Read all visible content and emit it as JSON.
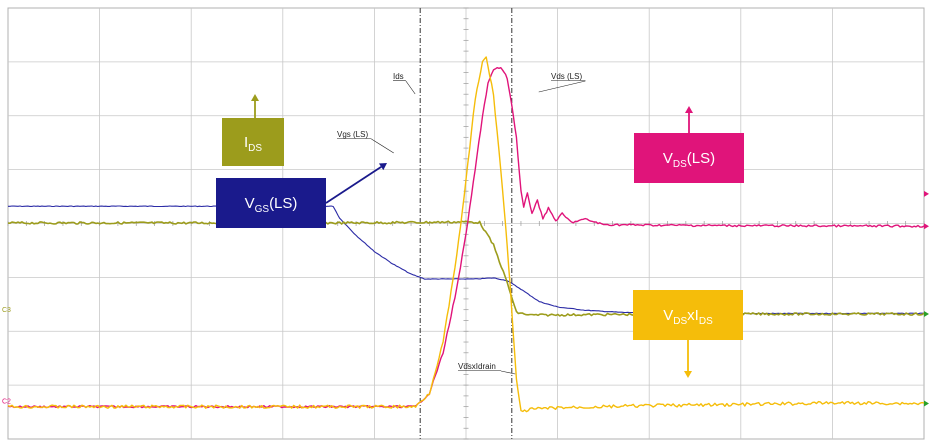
{
  "chart_data": {
    "type": "line",
    "title": "",
    "xlabel": "",
    "ylabel": "",
    "grid": true,
    "grid_divisions": {
      "x": 10,
      "y": 8
    },
    "xlim": [
      0,
      10
    ],
    "ylim": [
      0,
      8
    ],
    "colors": {
      "vgs": "#2b2ba6",
      "ids": "#9c9c1c",
      "vds": "#e0147a",
      "power": "#f5bd0a",
      "grid": "#c8c8c8",
      "cursor": "#333333"
    },
    "cursors_x": [
      4.5,
      5.5
    ],
    "channel_markers": [
      {
        "label": "C3",
        "y": 2.32,
        "color": "#9c9c1c"
      },
      {
        "label": "C2",
        "y": 0.62,
        "color": "#e0147a"
      }
    ],
    "series": [
      {
        "key": "vgs",
        "trace_label": "Vgs (LS)",
        "points": [
          [
            0,
            4.32
          ],
          [
            3.55,
            4.32
          ],
          [
            3.62,
            4.1
          ],
          [
            3.8,
            3.78
          ],
          [
            4.0,
            3.48
          ],
          [
            4.2,
            3.25
          ],
          [
            4.4,
            3.06
          ],
          [
            4.55,
            2.97
          ],
          [
            4.8,
            2.97
          ],
          [
            5.1,
            2.97
          ],
          [
            5.3,
            2.99
          ],
          [
            5.45,
            2.94
          ],
          [
            5.6,
            2.78
          ],
          [
            5.8,
            2.55
          ],
          [
            6.0,
            2.45
          ],
          [
            6.3,
            2.39
          ],
          [
            6.7,
            2.35
          ],
          [
            7.2,
            2.34
          ],
          [
            8.0,
            2.33
          ],
          [
            10,
            2.33
          ]
        ]
      },
      {
        "key": "ids",
        "trace_label": "Ids",
        "points": [
          [
            0,
            4.01
          ],
          [
            3.6,
            4.01
          ],
          [
            4.5,
            4.02
          ],
          [
            5.0,
            4.03
          ],
          [
            5.15,
            4.02
          ],
          [
            5.3,
            3.6
          ],
          [
            5.45,
            2.9
          ],
          [
            5.55,
            2.35
          ],
          [
            5.7,
            2.3
          ],
          [
            6.5,
            2.31
          ],
          [
            8.0,
            2.32
          ],
          [
            10,
            2.32
          ]
        ]
      },
      {
        "key": "vds",
        "trace_label": "Vds (LS)",
        "points": [
          [
            0,
            0.6
          ],
          [
            4.45,
            0.6
          ],
          [
            4.6,
            0.85
          ],
          [
            4.75,
            1.6
          ],
          [
            4.9,
            2.8
          ],
          [
            5.0,
            3.8
          ],
          [
            5.1,
            5.0
          ],
          [
            5.18,
            6.0
          ],
          [
            5.24,
            6.6
          ],
          [
            5.3,
            6.85
          ],
          [
            5.38,
            6.9
          ],
          [
            5.45,
            6.7
          ],
          [
            5.5,
            6.2
          ],
          [
            5.55,
            5.6
          ],
          [
            5.6,
            4.6
          ],
          [
            5.63,
            4.3
          ],
          [
            5.67,
            4.55
          ],
          [
            5.72,
            4.2
          ],
          [
            5.78,
            4.42
          ],
          [
            5.84,
            4.1
          ],
          [
            5.9,
            4.28
          ],
          [
            5.98,
            4.05
          ],
          [
            6.05,
            4.18
          ],
          [
            6.15,
            4.02
          ],
          [
            6.3,
            4.08
          ],
          [
            6.5,
            3.98
          ],
          [
            7.0,
            3.97
          ],
          [
            8.0,
            3.96
          ],
          [
            10,
            3.95
          ]
        ]
      },
      {
        "key": "power",
        "trace_label": "VdsxIdrain",
        "points": [
          [
            0,
            0.6
          ],
          [
            4.45,
            0.6
          ],
          [
            4.6,
            0.85
          ],
          [
            4.75,
            1.8
          ],
          [
            4.9,
            3.4
          ],
          [
            5.0,
            4.8
          ],
          [
            5.1,
            6.3
          ],
          [
            5.18,
            7.0
          ],
          [
            5.22,
            7.08
          ],
          [
            5.3,
            6.4
          ],
          [
            5.38,
            5.0
          ],
          [
            5.45,
            3.6
          ],
          [
            5.5,
            2.4
          ],
          [
            5.55,
            1.1
          ],
          [
            5.6,
            0.5
          ],
          [
            5.7,
            0.55
          ],
          [
            6.0,
            0.58
          ],
          [
            7.0,
            0.62
          ],
          [
            8.0,
            0.64
          ],
          [
            9.0,
            0.67
          ],
          [
            10,
            0.66
          ]
        ]
      }
    ],
    "annotations": [
      {
        "key": "ids",
        "main": "I",
        "sub": "DS",
        "suffix": ""
      },
      {
        "key": "vgs",
        "main": "V",
        "sub": "GS",
        "suffix": "(LS)"
      },
      {
        "key": "vds",
        "main": "V",
        "sub": "DS",
        "suffix": "(LS)"
      },
      {
        "key": "power",
        "main": "V",
        "sub": "DS",
        "suffix": "xI",
        "sub2": "DS"
      }
    ]
  }
}
